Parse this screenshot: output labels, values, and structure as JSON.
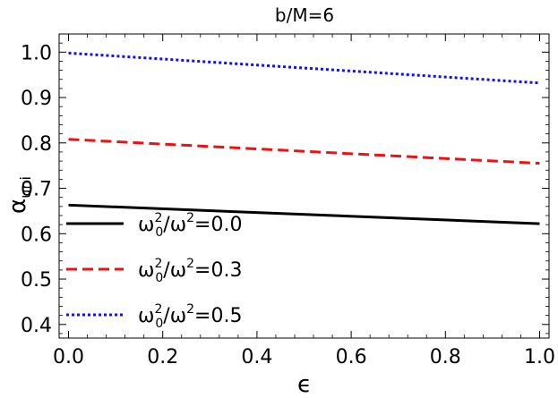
{
  "chart_data": {
    "type": "line",
    "title": "b/M=6",
    "xlabel": "ϵ",
    "ylabel": {
      "base": "α",
      "sub": "uni"
    },
    "xlim": [
      -0.02,
      1.02
    ],
    "ylim": [
      0.37,
      1.04
    ],
    "x_ticks": [
      0.0,
      0.2,
      0.4,
      0.6,
      0.8,
      1.0
    ],
    "x_tick_labels": [
      "0.0",
      "0.2",
      "0.4",
      "0.6",
      "0.8",
      "1.0"
    ],
    "y_ticks": [
      0.4,
      0.5,
      0.6,
      0.7,
      0.8,
      0.9,
      1.0
    ],
    "y_tick_labels": [
      "0.4",
      "0.5",
      "0.6",
      "0.7",
      "0.8",
      "0.9",
      "1.0"
    ],
    "grid": false,
    "legend_position": "left",
    "series": [
      {
        "name": "ω0²/ω²=0.0",
        "label": {
          "omega": "ω",
          "sub0": "0",
          "sup": "2",
          "rest": "/ω",
          "sup2": "2",
          "value": "=0.0"
        },
        "color": "#000000",
        "style": "solid",
        "x": [
          0.0,
          1.0
        ],
        "y": [
          0.663,
          0.622
        ]
      },
      {
        "name": "ω0²/ω²=0.3",
        "label": {
          "omega": "ω",
          "sub0": "0",
          "sup": "2",
          "rest": "/ω",
          "sup2": "2",
          "value": "=0.3"
        },
        "color": "#ee1111",
        "style": "dashed",
        "x": [
          0.0,
          1.0
        ],
        "y": [
          0.808,
          0.755
        ]
      },
      {
        "name": "ω0²/ω²=0.5",
        "label": {
          "omega": "ω",
          "sub0": "0",
          "sup": "2",
          "rest": "/ω",
          "sup2": "2",
          "value": "=0.5"
        },
        "color": "#1111ee",
        "style": "dotted",
        "x": [
          0.0,
          1.0
        ],
        "y": [
          0.998,
          0.932
        ]
      }
    ]
  }
}
